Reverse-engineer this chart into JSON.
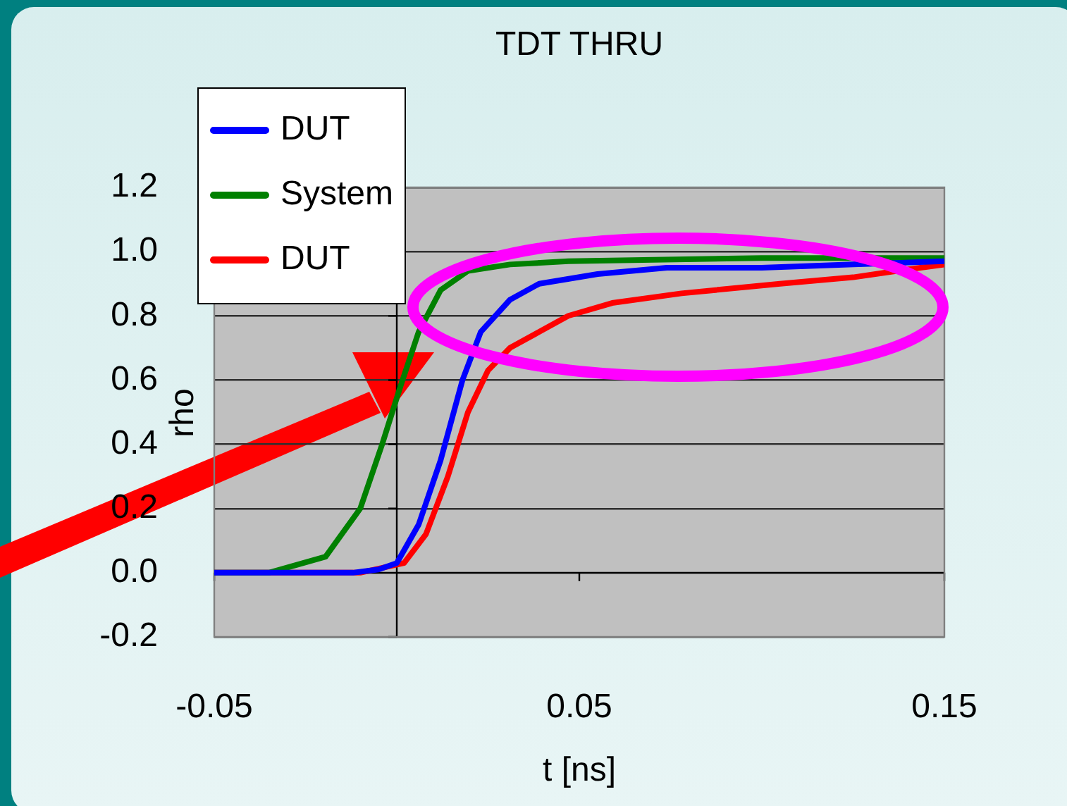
{
  "chart_data": {
    "type": "line",
    "title": "TDT THRU",
    "xlabel": "t [ns]",
    "ylabel": "rho",
    "xlim": [
      -0.05,
      0.15
    ],
    "xticks": [
      -0.05,
      0.05,
      0.15
    ],
    "ylim": [
      -0.2,
      1.2
    ],
    "yticks": [
      -0.2,
      {
        "value": 0,
        "label": "0.0"
      },
      0.2,
      0.4,
      0.6,
      0.8,
      {
        "value": 1,
        "label": "1.0"
      },
      1.2
    ],
    "grid": "y",
    "legend": "top left",
    "marker": "none",
    "line_style": "solid",
    "series": [
      {
        "name": "DUT",
        "color": "#0000ff",
        "x": [
          -0.05,
          -0.012,
          -0.005,
          0,
          0.006,
          0.012,
          0.018,
          0.023,
          0.031,
          0.039,
          0.055,
          0.074,
          0.1,
          0.125,
          0.15
        ],
        "values": [
          0,
          0,
          0.01,
          0.03,
          0.15,
          0.35,
          0.6,
          0.75,
          0.85,
          0.9,
          0.93,
          0.95,
          0.95,
          0.96,
          0.97
        ]
      },
      {
        "name": "System",
        "color": "#008000",
        "x": [
          -0.05,
          -0.035,
          -0.0195,
          -0.01,
          -0.004,
          0.001,
          0.006,
          0.012,
          0.0195,
          0.031,
          0.047,
          0.1,
          0.15
        ],
        "values": [
          0,
          0,
          0.05,
          0.2,
          0.4,
          0.58,
          0.75,
          0.88,
          0.94,
          0.96,
          0.97,
          0.98,
          0.98
        ]
      },
      {
        "name": "DUT",
        "color": "#ff0000",
        "x": [
          -0.05,
          -0.01,
          0.002,
          0.008,
          0.014,
          0.0195,
          0.025,
          0.031,
          0.039,
          0.047,
          0.059,
          0.078,
          0.105,
          0.125,
          0.137,
          0.15
        ],
        "values": [
          0,
          0,
          0.03,
          0.12,
          0.3,
          0.5,
          0.63,
          0.7,
          0.75,
          0.8,
          0.84,
          0.87,
          0.9,
          0.92,
          0.94,
          0.96
        ]
      }
    ]
  }
}
